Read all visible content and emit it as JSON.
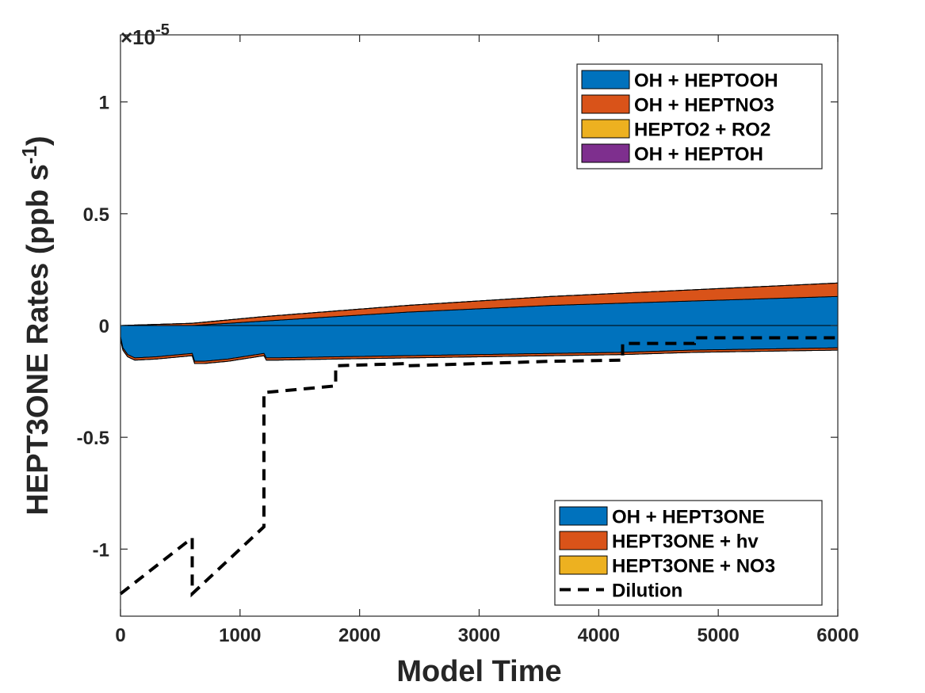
{
  "chart_data": {
    "type": "area",
    "title": "",
    "xlabel": "Model Time",
    "ylabel": "HEPT3ONE Rates (ppb s",
    "ylabel_superscript": "-1",
    "ylabel_suffix": ")",
    "exponent_label": "×10",
    "exponent_superscript": "-5",
    "xlim": [
      0,
      6000
    ],
    "ylim": [
      -1.3,
      1.3
    ],
    "exponent": -5,
    "xticks": [
      {
        "value": 0,
        "label": "0"
      },
      {
        "value": 1000,
        "label": "1000"
      },
      {
        "value": 2000,
        "label": "2000"
      },
      {
        "value": 3000,
        "label": "3000"
      },
      {
        "value": 4000,
        "label": "4000"
      },
      {
        "value": 5000,
        "label": "5000"
      },
      {
        "value": 6000,
        "label": "6000"
      }
    ],
    "yticks": [
      {
        "value": -1,
        "label": "-1"
      },
      {
        "value": -0.5,
        "label": "-0.5"
      },
      {
        "value": 0,
        "label": "0"
      },
      {
        "value": 0.5,
        "label": "0.5"
      },
      {
        "value": 1,
        "label": "1"
      }
    ],
    "grid": false,
    "production_series": [
      {
        "name": "OH + HEPTOOH",
        "color": "#0072bd",
        "x": [
          0,
          600,
          1200,
          1800,
          2400,
          3000,
          3600,
          4200,
          4800,
          5400,
          6000
        ],
        "values": [
          0.0,
          0.0,
          0.02,
          0.04,
          0.06,
          0.075,
          0.09,
          0.1,
          0.11,
          0.12,
          0.13
        ]
      },
      {
        "name": "OH + HEPTNO3",
        "color": "#d95319",
        "x": [
          0,
          600,
          1200,
          1800,
          2400,
          3000,
          3600,
          4200,
          4800,
          5400,
          6000
        ],
        "values": [
          0.0,
          0.01,
          0.02,
          0.025,
          0.03,
          0.035,
          0.04,
          0.045,
          0.05,
          0.055,
          0.06
        ]
      },
      {
        "name": "HEPTO2 + RO2",
        "color": "#edb120",
        "x": [
          0,
          6000
        ],
        "values": [
          0.0,
          0.0
        ]
      },
      {
        "name": "OH + HEPTOH",
        "color": "#7e2f8e",
        "x": [
          0,
          6000
        ],
        "values": [
          0.0,
          0.0
        ]
      }
    ],
    "loss_series": [
      {
        "name": "OH + HEPT3ONE",
        "color": "#0072bd",
        "x": [
          0,
          20,
          60,
          120,
          300,
          600,
          620,
          700,
          900,
          1200,
          1220,
          1300,
          1800,
          2400,
          3000,
          3600,
          4200,
          4800,
          5400,
          6000
        ],
        "values": [
          -0.05,
          -0.1,
          -0.13,
          -0.145,
          -0.14,
          -0.125,
          -0.16,
          -0.16,
          -0.15,
          -0.125,
          -0.145,
          -0.145,
          -0.14,
          -0.135,
          -0.13,
          -0.125,
          -0.12,
          -0.11,
          -0.105,
          -0.1
        ]
      },
      {
        "name": "HEPT3ONE + hv",
        "color": "#d95319",
        "x": [
          0,
          6000
        ],
        "values": [
          -0.01,
          -0.01
        ]
      },
      {
        "name": "HEPT3ONE + NO3",
        "color": "#edb120",
        "x": [
          0,
          6000
        ],
        "values": [
          0.0,
          0.0
        ]
      }
    ],
    "dilution": {
      "name": "Dilution",
      "color": "#000000",
      "x": [
        0,
        600,
        600,
        1200,
        1200,
        1800,
        1800,
        2400,
        2400,
        3000,
        3600,
        4200,
        4200,
        4800,
        4800,
        5400,
        6000
      ],
      "values": [
        -1.2,
        -0.95,
        -1.2,
        -0.9,
        -0.3,
        -0.27,
        -0.18,
        -0.17,
        -0.18,
        -0.17,
        -0.16,
        -0.155,
        -0.08,
        -0.08,
        -0.055,
        -0.055,
        -0.055
      ]
    },
    "legends": [
      {
        "position": "top-right",
        "entries": [
          "OH + HEPTOOH",
          "OH + HEPTNO3",
          "HEPTO2 + RO2",
          "OH + HEPTOH"
        ]
      },
      {
        "position": "bottom-right",
        "entries": [
          "OH + HEPT3ONE",
          "HEPT3ONE + hv",
          "HEPT3ONE + NO3",
          "Dilution"
        ]
      }
    ]
  }
}
